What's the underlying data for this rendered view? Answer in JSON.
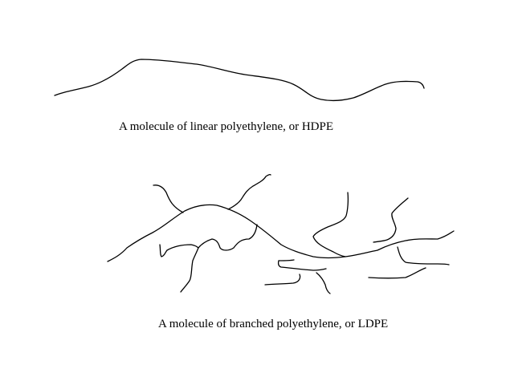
{
  "captions": {
    "linear": "A molecule of linear polyethylene, or HDPE",
    "branched": "A molecule of branched polyethylene, or LDPE"
  },
  "colors": {
    "background": "#ffffff",
    "stroke": "#000000",
    "text": "#000000"
  }
}
